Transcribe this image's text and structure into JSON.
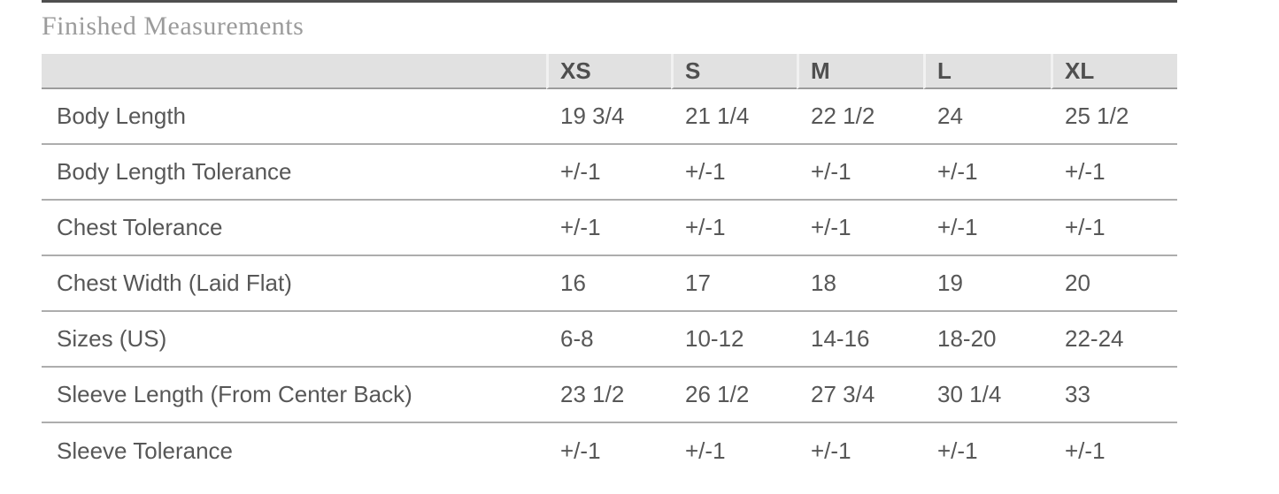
{
  "page": {
    "title": "Finished Measurements"
  },
  "table": {
    "columns": [
      "XS",
      "S",
      "M",
      "L",
      "XL"
    ],
    "rows": [
      {
        "label": "Body Length",
        "values": [
          "19 3/4",
          "21 1/4",
          "22 1/2",
          "24",
          "25 1/2"
        ]
      },
      {
        "label": "Body Length Tolerance",
        "values": [
          "+/-1",
          "+/-1",
          "+/-1",
          "+/-1",
          "+/-1"
        ]
      },
      {
        "label": "Chest Tolerance",
        "values": [
          "+/-1",
          "+/-1",
          "+/-1",
          "+/-1",
          "+/-1"
        ]
      },
      {
        "label": "Chest Width (Laid Flat)",
        "values": [
          "16",
          "17",
          "18",
          "19",
          "20"
        ]
      },
      {
        "label": "Sizes (US)",
        "values": [
          "6-8",
          "10-12",
          "14-16",
          "18-20",
          "22-24"
        ]
      },
      {
        "label": "Sleeve Length (From Center Back)",
        "values": [
          "23 1/2",
          "26 1/2",
          "27 3/4",
          "30 1/4",
          "33"
        ]
      },
      {
        "label": "Sleeve Tolerance",
        "values": [
          "+/-1",
          "+/-1",
          "+/-1",
          "+/-1",
          "+/-1"
        ]
      }
    ]
  },
  "colors": {
    "top_rule": "#4f4f4f",
    "title_text": "#9b9b9b",
    "header_background": "#e1e1e1",
    "header_text": "#4f4f4f",
    "header_border": "#9c9c9c",
    "body_text": "#575757",
    "row_divider": "#adadad",
    "background": "#ffffff"
  }
}
